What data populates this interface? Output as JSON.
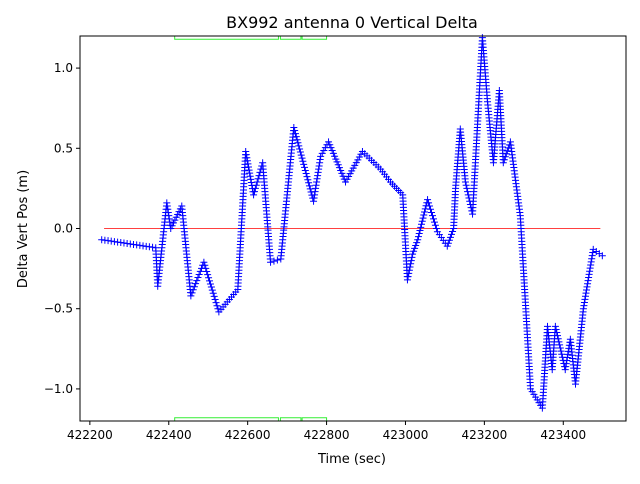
{
  "chart_data": {
    "type": "scatter",
    "title": "BX992 antenna 0 Vertical Delta",
    "xlabel": "Time (sec)",
    "ylabel": "Delta Vert Pos (m)",
    "xlim": [
      422175,
      423559
    ],
    "ylim": [
      -1.2,
      1.2
    ],
    "xticks": [
      422200,
      422400,
      422600,
      422800,
      423000,
      423200,
      423400
    ],
    "xtick_labels": [
      "422200",
      "422400",
      "422600",
      "422800",
      "423000",
      "423200",
      "423400"
    ],
    "yticks": [
      -1.0,
      -0.5,
      0.0,
      0.5,
      1.0
    ],
    "ytick_labels": [
      "−1.0",
      "−0.5",
      "0.0",
      "0.5",
      "1.0"
    ],
    "grid": false,
    "series": [
      {
        "marker": "+",
        "color": "#0000ff",
        "points": [
          [
            422230,
            -0.07
          ],
          [
            422367,
            -0.12
          ],
          [
            422372,
            -0.36
          ],
          [
            422395,
            0.16
          ],
          [
            422405,
            0.0
          ],
          [
            422433,
            0.14
          ],
          [
            422456,
            -0.42
          ],
          [
            422489,
            -0.21
          ],
          [
            422527,
            -0.52
          ],
          [
            422575,
            -0.38
          ],
          [
            422595,
            0.48
          ],
          [
            422615,
            0.21
          ],
          [
            422638,
            0.41
          ],
          [
            422658,
            -0.21
          ],
          [
            422684,
            -0.19
          ],
          [
            422717,
            0.63
          ],
          [
            422767,
            0.17
          ],
          [
            422785,
            0.45
          ],
          [
            422805,
            0.54
          ],
          [
            422848,
            0.29
          ],
          [
            422891,
            0.48
          ],
          [
            422937,
            0.37
          ],
          [
            422962,
            0.29
          ],
          [
            422993,
            0.21
          ],
          [
            423005,
            -0.32
          ],
          [
            423018,
            -0.16
          ],
          [
            423031,
            -0.07
          ],
          [
            423056,
            0.18
          ],
          [
            423081,
            -0.02
          ],
          [
            423106,
            -0.11
          ],
          [
            423122,
            0.0
          ],
          [
            423127,
            0.25
          ],
          [
            423139,
            0.62
          ],
          [
            423152,
            0.29
          ],
          [
            423170,
            0.09
          ],
          [
            423195,
            1.19
          ],
          [
            423208,
            0.79
          ],
          [
            423223,
            0.41
          ],
          [
            423238,
            0.86
          ],
          [
            423248,
            0.41
          ],
          [
            423266,
            0.54
          ],
          [
            423291,
            0.08
          ],
          [
            423317,
            -1.0
          ],
          [
            423347,
            -1.12
          ],
          [
            423360,
            -0.61
          ],
          [
            423372,
            -0.88
          ],
          [
            423380,
            -0.61
          ],
          [
            423405,
            -0.88
          ],
          [
            423418,
            -0.69
          ],
          [
            423431,
            -0.97
          ],
          [
            423451,
            -0.5
          ],
          [
            423476,
            -0.13
          ],
          [
            423499,
            -0.17
          ]
        ]
      }
    ],
    "zero_line": {
      "y": 0.0,
      "x_range": [
        422236,
        423494
      ],
      "color": "#ff0000"
    },
    "green_segments": {
      "color": "#33ee33",
      "levels": [
        1.18,
        -1.18
      ],
      "ranges": [
        [
          422415,
          422678
        ],
        [
          422683,
          422735
        ],
        [
          422738,
          422800
        ]
      ]
    }
  }
}
